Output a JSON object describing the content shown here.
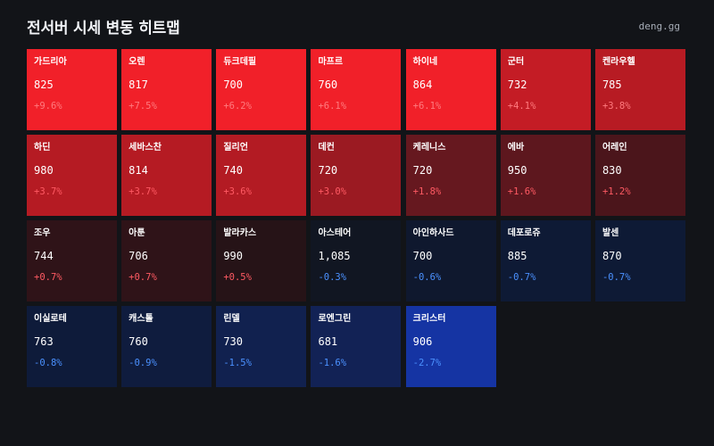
{
  "header": {
    "title": "전서버 시세 변동 히트맵",
    "brand": "deng.gg"
  },
  "colors": {
    "background": "#121418",
    "up_strong": "#f12029",
    "up_mid": "#b71c24",
    "up_dark": "#601820",
    "up_darkest": "#2a1216",
    "neutral": "#111622",
    "down_light": "#0e1a38",
    "down_mid": "#12235a",
    "down_strong": "#1432a0"
  },
  "cells": [
    {
      "name": "가드리아",
      "price": "825",
      "change": "+9.6%",
      "bg": "#f12029",
      "tone": "muted-up"
    },
    {
      "name": "오렌",
      "price": "817",
      "change": "+7.5%",
      "bg": "#f12029",
      "tone": "muted-up"
    },
    {
      "name": "듀크데필",
      "price": "700",
      "change": "+6.2%",
      "bg": "#f12029",
      "tone": "muted-up"
    },
    {
      "name": "마프르",
      "price": "760",
      "change": "+6.1%",
      "bg": "#f12029",
      "tone": "muted-up"
    },
    {
      "name": "하이네",
      "price": "864",
      "change": "+6.1%",
      "bg": "#f12029",
      "tone": "muted-up"
    },
    {
      "name": "군터",
      "price": "732",
      "change": "+4.1%",
      "bg": "#c41c25",
      "tone": "muted-up"
    },
    {
      "name": "켄라우헬",
      "price": "785",
      "change": "+3.8%",
      "bg": "#b71b23",
      "tone": "muted-up"
    },
    {
      "name": "하딘",
      "price": "980",
      "change": "+3.7%",
      "bg": "#b51b23",
      "tone": "up"
    },
    {
      "name": "세바스찬",
      "price": "814",
      "change": "+3.7%",
      "bg": "#b51b23",
      "tone": "up"
    },
    {
      "name": "질리언",
      "price": "740",
      "change": "+3.6%",
      "bg": "#b31b23",
      "tone": "up"
    },
    {
      "name": "데컨",
      "price": "720",
      "change": "+3.0%",
      "bg": "#9b1a22",
      "tone": "up"
    },
    {
      "name": "케레니스",
      "price": "720",
      "change": "+1.8%",
      "bg": "#66181f",
      "tone": "up"
    },
    {
      "name": "에바",
      "price": "950",
      "change": "+1.6%",
      "bg": "#5d171e",
      "tone": "up"
    },
    {
      "name": "어레인",
      "price": "830",
      "change": "+1.2%",
      "bg": "#4b151b",
      "tone": "up"
    },
    {
      "name": "조우",
      "price": "744",
      "change": "+0.7%",
      "bg": "#2f1318",
      "tone": "up"
    },
    {
      "name": "아툰",
      "price": "706",
      "change": "+0.7%",
      "bg": "#2f1318",
      "tone": "up"
    },
    {
      "name": "발라카스",
      "price": "990",
      "change": "+0.5%",
      "bg": "#261317",
      "tone": "up"
    },
    {
      "name": "아스테어",
      "price": "1,085",
      "change": "-0.3%",
      "bg": "#111622",
      "tone": "down"
    },
    {
      "name": "아인하사드",
      "price": "700",
      "change": "-0.6%",
      "bg": "#0f182e",
      "tone": "down"
    },
    {
      "name": "데포로쥬",
      "price": "885",
      "change": "-0.7%",
      "bg": "#0e1a35",
      "tone": "down"
    },
    {
      "name": "발센",
      "price": "870",
      "change": "-0.7%",
      "bg": "#0e1a35",
      "tone": "down"
    },
    {
      "name": "이실로테",
      "price": "763",
      "change": "-0.8%",
      "bg": "#0e1b3a",
      "tone": "down"
    },
    {
      "name": "캐스톨",
      "price": "760",
      "change": "-0.9%",
      "bg": "#0f1c3e",
      "tone": "down"
    },
    {
      "name": "린델",
      "price": "730",
      "change": "-1.5%",
      "bg": "#11214f",
      "tone": "down"
    },
    {
      "name": "로엔그린",
      "price": "681",
      "change": "-1.6%",
      "bg": "#122255",
      "tone": "down"
    },
    {
      "name": "크리스터",
      "price": "906",
      "change": "-2.7%",
      "bg": "#1534a3",
      "tone": "down"
    }
  ]
}
